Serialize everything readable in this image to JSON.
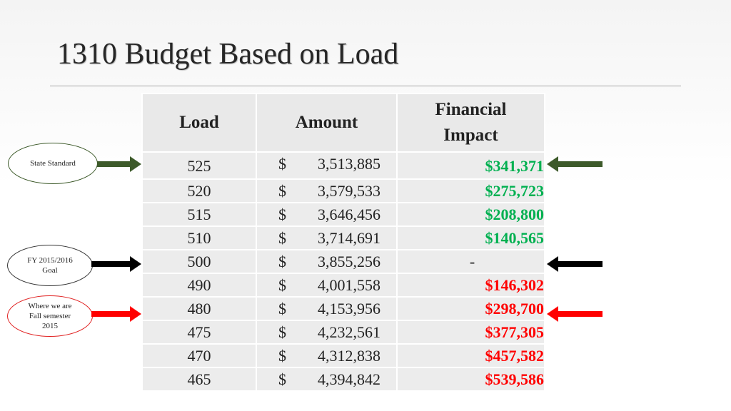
{
  "slide": {
    "title": "1310 Budget Based on Load"
  },
  "table": {
    "headers": {
      "load": "Load",
      "amount": "Amount",
      "impact_line1": "Financial",
      "impact_line2": "Impact"
    },
    "currency_symbol": "$",
    "rows": [
      {
        "load": "525",
        "amount": "3,513,885",
        "impact": "$341,371",
        "status": "positive"
      },
      {
        "load": "520",
        "amount": "3,579,533",
        "impact": "$275,723",
        "status": "positive"
      },
      {
        "load": "515",
        "amount": "3,646,456",
        "impact": "$208,800",
        "status": "positive"
      },
      {
        "load": "510",
        "amount": "3,714,691",
        "impact": "$140,565",
        "status": "positive"
      },
      {
        "load": "500",
        "amount": "3,855,256",
        "impact": "-",
        "status": "neutral"
      },
      {
        "load": "490",
        "amount": "4,001,558",
        "impact": "$146,302",
        "status": "negative"
      },
      {
        "load": "480",
        "amount": "4,153,956",
        "impact": "$298,700",
        "status": "negative"
      },
      {
        "load": "475",
        "amount": "4,232,561",
        "impact": "$377,305",
        "status": "negative"
      },
      {
        "load": "470",
        "amount": "4,312,838",
        "impact": "$457,582",
        "status": "negative"
      },
      {
        "load": "465",
        "amount": "4,394,842",
        "impact": "$539,586",
        "status": "negative"
      }
    ]
  },
  "callouts": {
    "state_standard": {
      "label": "State Standard",
      "color": "#3d5a2a",
      "oval_border": "#3d5a2a"
    },
    "fy_goal": {
      "label_line1": "FY 2015/2016",
      "label_line2": "Goal",
      "color": "#000000",
      "oval_border": "#333333"
    },
    "where_we_are": {
      "label_line1": "Where we are",
      "label_line2": "Fall semester",
      "label_line3": "2015",
      "color": "#ff0000",
      "oval_border": "#e02020"
    }
  },
  "colors": {
    "positive": "#00b050",
    "negative": "#ff0000",
    "neutral": "#222222"
  }
}
